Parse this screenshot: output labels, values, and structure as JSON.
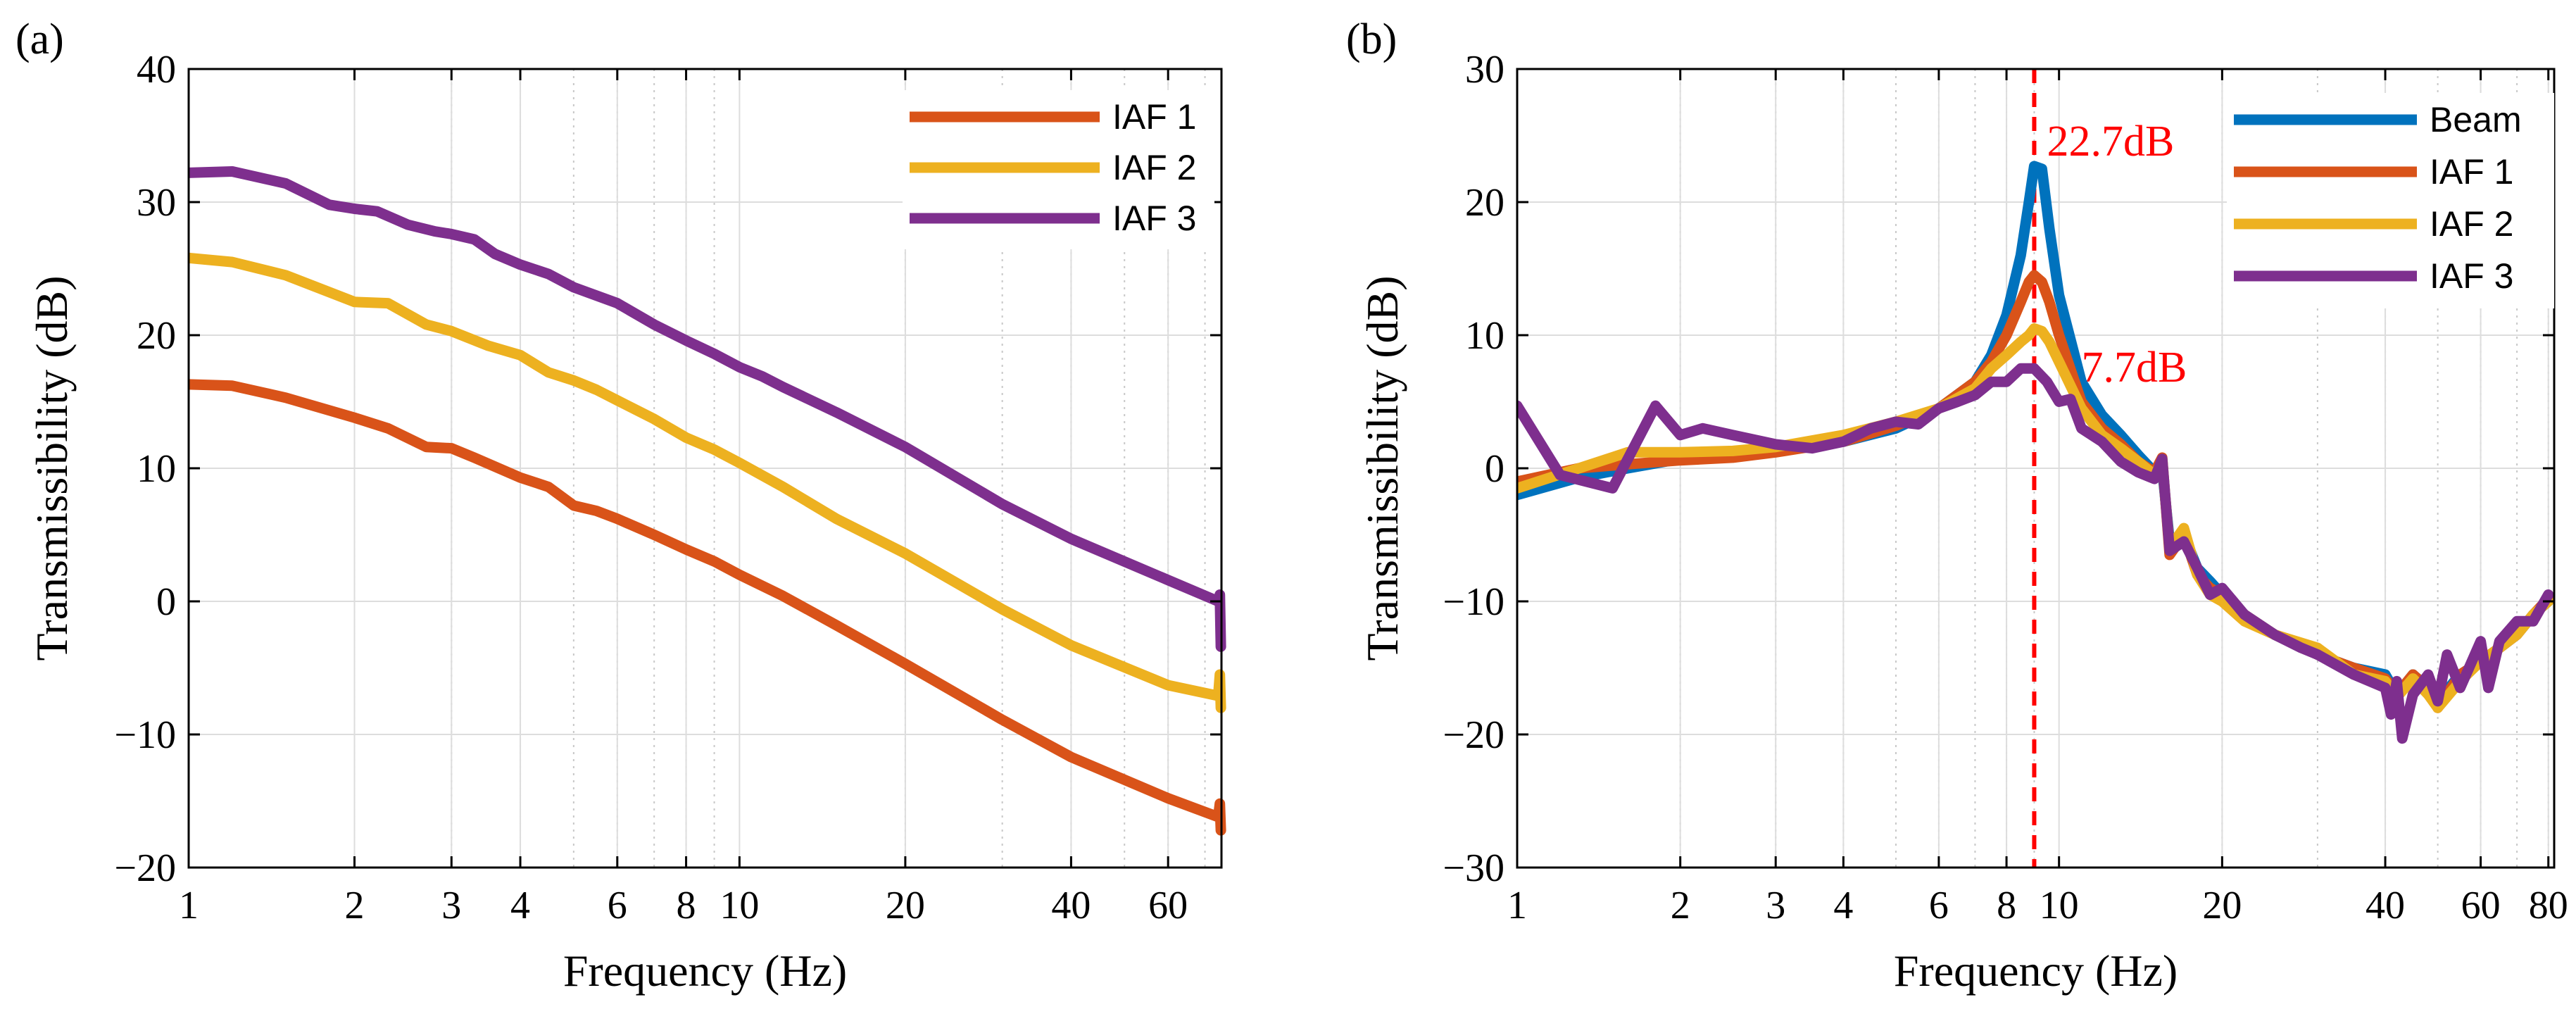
{
  "chart_data": [
    {
      "panel_label": "(a)",
      "type": "line",
      "xscale": "log",
      "xlabel": "Frequency (Hz)",
      "ylabel": "Transmissibility (dB)",
      "xlim": [
        1,
        75
      ],
      "ylim": [
        -20,
        40
      ],
      "grid": true,
      "legend_position": "top-right",
      "x_ticks": [
        1,
        2,
        3,
        4,
        6,
        8,
        10,
        20,
        40,
        60
      ],
      "x_tick_labels": [
        "1",
        "2",
        "3",
        "4",
        "6",
        "8",
        "10",
        "20",
        "40",
        "60"
      ],
      "y_ticks": [
        -20,
        -10,
        0,
        10,
        20,
        30,
        40
      ],
      "y_tick_labels": [
        "−20",
        "−10",
        "0",
        "10",
        "20",
        "30",
        "40"
      ],
      "series": [
        {
          "name": "IAF 1",
          "color": "#D95319",
          "x": [
            1,
            1.2,
            1.5,
            2,
            2.3,
            2.7,
            3,
            3.3,
            4,
            4.5,
            5,
            5.5,
            6,
            7,
            8,
            9,
            10,
            12,
            15,
            20,
            30,
            40,
            60,
            74,
            74.5,
            74.8
          ],
          "y": [
            16.3,
            16.2,
            15.3,
            13.8,
            13,
            11.6,
            11.5,
            10.8,
            9.3,
            8.6,
            7.2,
            6.8,
            6.2,
            5,
            3.9,
            3,
            2,
            0.4,
            -1.8,
            -4.7,
            -8.9,
            -11.7,
            -14.8,
            -16.2,
            -15.2,
            -17.2
          ]
        },
        {
          "name": "IAF 2",
          "color": "#EDB120",
          "x": [
            1,
            1.2,
            1.5,
            2,
            2.3,
            2.7,
            3,
            3.5,
            4,
            4.5,
            5,
            5.5,
            6,
            7,
            8,
            9,
            10,
            12,
            15,
            20,
            30,
            40,
            60,
            74,
            74.5,
            74.8
          ],
          "y": [
            25.8,
            25.5,
            24.5,
            22.5,
            22.4,
            20.8,
            20.3,
            19.2,
            18.5,
            17.2,
            16.6,
            15.9,
            15.1,
            13.7,
            12.3,
            11.4,
            10.4,
            8.6,
            6.2,
            3.6,
            -0.6,
            -3.3,
            -6.3,
            -7.1,
            -5.5,
            -8.0
          ]
        },
        {
          "name": "IAF 3",
          "color": "#7E2F8E",
          "x": [
            1,
            1.2,
            1.5,
            1.8,
            2,
            2.2,
            2.5,
            2.8,
            3,
            3.3,
            3.6,
            4,
            4.5,
            5,
            6,
            7,
            8,
            9,
            10,
            11,
            12,
            15,
            20,
            30,
            40,
            60,
            74,
            74.5,
            74.8
          ],
          "y": [
            32.2,
            32.3,
            31.4,
            29.8,
            29.5,
            29.3,
            28.3,
            27.8,
            27.6,
            27.2,
            26.1,
            25.3,
            24.6,
            23.6,
            22.4,
            20.8,
            19.6,
            18.6,
            17.6,
            16.9,
            16.1,
            14.2,
            11.6,
            7.3,
            4.7,
            1.6,
            0,
            0.5,
            -3.4
          ]
        }
      ]
    },
    {
      "panel_label": "(b)",
      "type": "line",
      "xscale": "log",
      "xlabel": "Frequency (Hz)",
      "ylabel": "Transmissibility (dB)",
      "xlim": [
        1,
        82
      ],
      "ylim": [
        -30,
        30
      ],
      "grid": true,
      "legend_position": "top-right",
      "x_ticks": [
        1,
        2,
        3,
        4,
        6,
        8,
        10,
        20,
        40,
        60,
        80
      ],
      "x_tick_labels": [
        "1",
        "2",
        "3",
        "4",
        "6",
        "8",
        "10",
        "20",
        "40",
        "60",
        "80"
      ],
      "y_ticks": [
        -30,
        -20,
        -10,
        0,
        10,
        20,
        30
      ],
      "y_tick_labels": [
        "−30",
        "−20",
        "−10",
        "0",
        "10",
        "20",
        "30"
      ],
      "reference_line": {
        "x": 9,
        "color": "#ff0000"
      },
      "annotations": [
        {
          "text": "22.7dB",
          "x": 9.5,
          "y": 23.5
        },
        {
          "text": "7.7dB",
          "x": 11,
          "y": 6.5
        }
      ],
      "series": [
        {
          "name": "Beam",
          "color": "#0072BD",
          "x": [
            1,
            1.3,
            1.6,
            2,
            2.5,
            3,
            4,
            5,
            6,
            7,
            7.5,
            8,
            8.5,
            8.8,
            9,
            9.3,
            9.6,
            10,
            11,
            12,
            13,
            14,
            15,
            15.5,
            16,
            17,
            18,
            19,
            20,
            22,
            25,
            30,
            35,
            40,
            42,
            45,
            48,
            50,
            55,
            60,
            65,
            70,
            75,
            80
          ],
          "y": [
            -2,
            -0.7,
            0,
            0.7,
            1.1,
            1.3,
            2,
            3,
            4.5,
            6.5,
            8.5,
            11.5,
            16,
            20,
            22.7,
            22.5,
            18,
            13,
            6.5,
            4,
            2.5,
            1,
            -0.3,
            0,
            -5.5,
            -5,
            -7.5,
            -8.5,
            -9.5,
            -11,
            -12.5,
            -14,
            -15,
            -15.5,
            -17,
            -15.5,
            -16.5,
            -17.5,
            -15.5,
            -14.5,
            -13.5,
            -12.5,
            -11,
            -10
          ]
        },
        {
          "name": "IAF 1",
          "color": "#D95319",
          "x": [
            1,
            1.3,
            1.6,
            2,
            2.5,
            3,
            4,
            5,
            6,
            7,
            7.5,
            8,
            8.5,
            8.8,
            9,
            9.3,
            9.6,
            10,
            11,
            12,
            13,
            14,
            15,
            15.5,
            16,
            17,
            18,
            19,
            20,
            22,
            25,
            30,
            35,
            40,
            42,
            45,
            48,
            50,
            55,
            60,
            65,
            70,
            75,
            80
          ],
          "y": [
            -1,
            0,
            0.3,
            0.6,
            0.8,
            1.2,
            2,
            3.2,
            4.5,
            6.5,
            8,
            10,
            12.5,
            14,
            14.5,
            14,
            12.5,
            10,
            5,
            3,
            1.8,
            0.5,
            -0.3,
            0.8,
            -6.5,
            -5,
            -8,
            -9,
            -9.5,
            -11,
            -12.5,
            -14,
            -15,
            -15.8,
            -17,
            -15.5,
            -16.5,
            -18,
            -15.5,
            -14.5,
            -13.5,
            -12.5,
            -11,
            -9.8
          ]
        },
        {
          "name": "IAF 2",
          "color": "#EDB120",
          "x": [
            1,
            1.3,
            1.6,
            2,
            2.5,
            3,
            4,
            5,
            6,
            7,
            7.5,
            8,
            8.5,
            8.8,
            9,
            9.3,
            9.6,
            10,
            11,
            12,
            13,
            14,
            15,
            15.5,
            16,
            17,
            18,
            19,
            20,
            22,
            25,
            30,
            35,
            40,
            42,
            45,
            48,
            50,
            55,
            60,
            65,
            70,
            75,
            80
          ],
          "y": [
            -1.5,
            0,
            1.2,
            1.2,
            1.3,
            1.6,
            2.5,
            3.5,
            4.5,
            6,
            7.5,
            8.5,
            9.5,
            10,
            10.5,
            10.3,
            9.5,
            8,
            4.5,
            2.5,
            1.5,
            0.5,
            -0.5,
            0.5,
            -6,
            -4.5,
            -8,
            -9.5,
            -10,
            -11.5,
            -12.5,
            -13.5,
            -15.5,
            -16,
            -17.2,
            -15.8,
            -17,
            -18,
            -16,
            -14.5,
            -13.5,
            -12.5,
            -11,
            -10
          ]
        },
        {
          "name": "IAF 3",
          "color": "#7E2F8E",
          "x": [
            1,
            1.2,
            1.5,
            1.8,
            2,
            2.2,
            2.5,
            3,
            3.5,
            4,
            4.5,
            5,
            5.5,
            6,
            6.5,
            7,
            7.5,
            8,
            8.5,
            9,
            9.5,
            10,
            10.5,
            11,
            12,
            13,
            14,
            15,
            15.5,
            16,
            17,
            18,
            19,
            20,
            22,
            25,
            28,
            30,
            35,
            40,
            41,
            42,
            43,
            45,
            48,
            50,
            52,
            55,
            60,
            62,
            65,
            70,
            75,
            80
          ],
          "y": [
            4.7,
            -0.5,
            -1.5,
            4.7,
            2.5,
            3,
            2.5,
            1.8,
            1.5,
            2,
            3,
            3.5,
            3.3,
            4.5,
            5,
            5.5,
            6.5,
            6.5,
            7.5,
            7.5,
            6.5,
            5,
            5.2,
            3,
            2,
            0.5,
            -0.3,
            -0.8,
            0.7,
            -6.2,
            -5.5,
            -7.5,
            -9.5,
            -9,
            -11,
            -12.5,
            -13.5,
            -14,
            -15.5,
            -16.5,
            -18.5,
            -16,
            -20.3,
            -17,
            -15.5,
            -17.5,
            -14,
            -16.5,
            -13,
            -16.5,
            -13,
            -11.5,
            -11.5,
            -9.5
          ]
        }
      ]
    }
  ]
}
